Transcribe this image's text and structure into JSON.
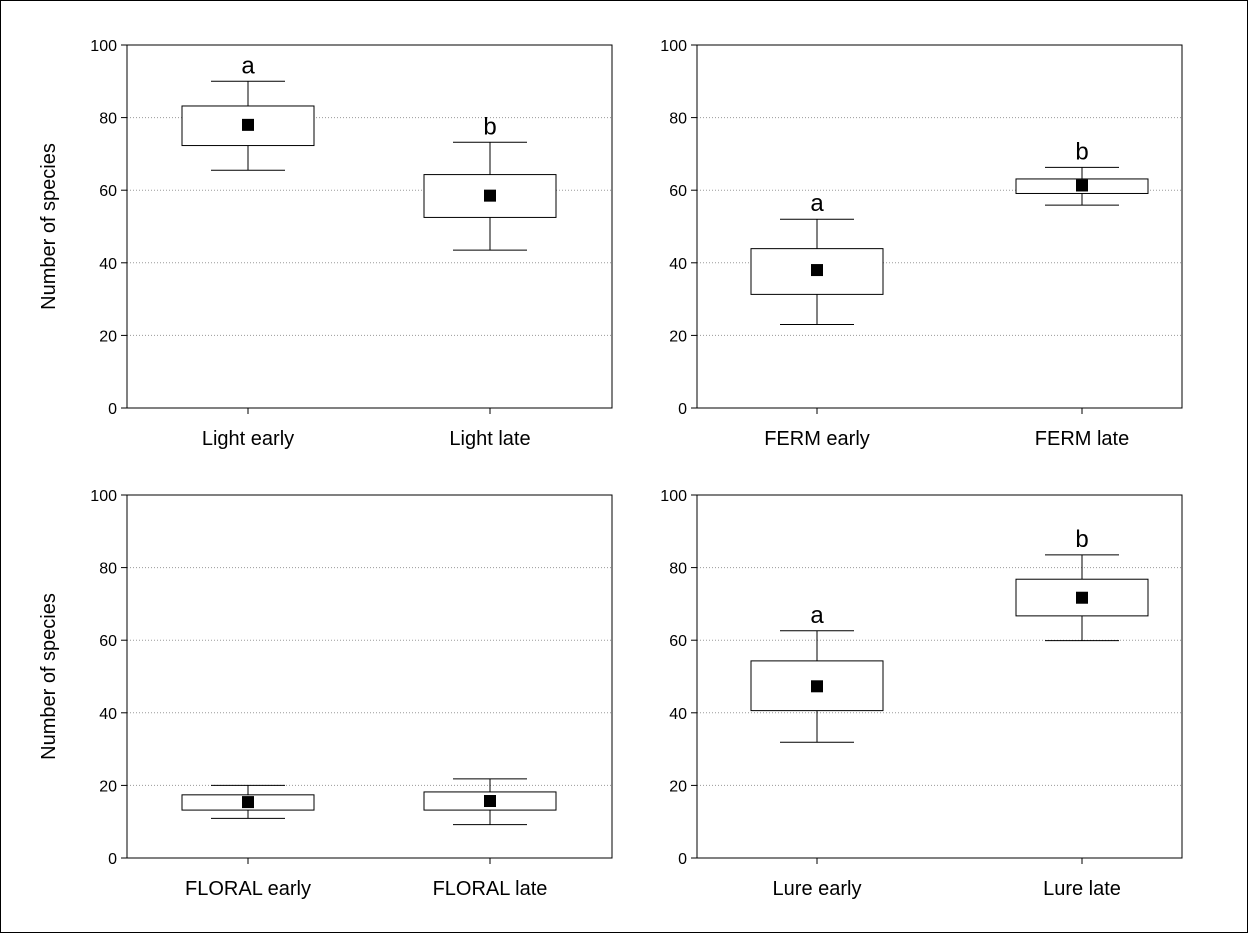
{
  "colors": {
    "axis": "#000000",
    "grid": "#9a9a9a",
    "box_fill": "#ffffff",
    "mean_marker": "#000000"
  },
  "chart_data": [
    {
      "type": "box",
      "ylabel": "Number of species",
      "ylim": [
        0,
        100
      ],
      "yticks": [
        0,
        20,
        40,
        60,
        80,
        100
      ],
      "grid": "horizontal dotted",
      "categories": [
        "Light early",
        "Light late"
      ],
      "mean": [
        78,
        58.5
      ],
      "box": [
        [
          72.3,
          83.2
        ],
        [
          52.5,
          64.3
        ]
      ],
      "whisker": [
        [
          65.5,
          90
        ],
        [
          43.5,
          73.2
        ]
      ],
      "significance": [
        "a",
        "b"
      ]
    },
    {
      "type": "box",
      "ylabel": "",
      "ylim": [
        0,
        100
      ],
      "yticks": [
        0,
        20,
        40,
        60,
        80,
        100
      ],
      "grid": "horizontal dotted",
      "categories": [
        "FERM early",
        "FERM late"
      ],
      "mean": [
        38,
        61.3
      ],
      "box": [
        [
          31.3,
          43.9
        ],
        [
          59.1,
          63.1
        ]
      ],
      "whisker": [
        [
          23,
          52
        ],
        [
          55.9,
          66.3
        ]
      ],
      "significance": [
        "a",
        "b"
      ]
    },
    {
      "type": "box",
      "ylabel": "Number of species",
      "ylim": [
        0,
        100
      ],
      "yticks": [
        0,
        20,
        40,
        60,
        80,
        100
      ],
      "grid": "horizontal dotted",
      "categories": [
        "FLORAL early",
        "FLORAL late"
      ],
      "mean": [
        15.4,
        15.7
      ],
      "box": [
        [
          13.2,
          17.4
        ],
        [
          13.2,
          18.2
        ]
      ],
      "whisker": [
        [
          10.9,
          20
        ],
        [
          9.2,
          21.8
        ]
      ],
      "significance": [
        "",
        ""
      ]
    },
    {
      "type": "box",
      "ylabel": "",
      "ylim": [
        0,
        100
      ],
      "yticks": [
        0,
        20,
        40,
        60,
        80,
        100
      ],
      "grid": "horizontal dotted",
      "categories": [
        "Lure early",
        "Lure late"
      ],
      "mean": [
        47.3,
        71.7
      ],
      "box": [
        [
          40.6,
          54.3
        ],
        [
          66.7,
          76.8
        ]
      ],
      "whisker": [
        [
          31.9,
          62.6
        ],
        [
          59.9,
          83.5
        ]
      ],
      "significance": [
        "a",
        "b"
      ]
    }
  ]
}
